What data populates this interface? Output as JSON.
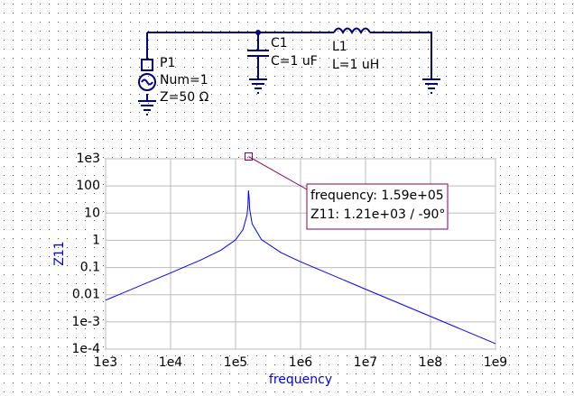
{
  "schematic": {
    "components": [
      {
        "name": "P1",
        "params": [
          "Num=1",
          "Z=50 Ω"
        ]
      },
      {
        "name": "C1",
        "params": [
          "C=1 uF"
        ]
      },
      {
        "name": "L1",
        "params": [
          "L=1 uH"
        ]
      }
    ]
  },
  "chart_data": {
    "type": "line",
    "xlabel": "frequency",
    "ylabel": "Z11",
    "color": "#0000ff",
    "log_x": true,
    "log_y": true,
    "grid": true,
    "x": [
      1000,
      10000,
      30000,
      60000,
      100000,
      130000,
      150000,
      155000,
      158000,
      161000,
      165000,
      180000,
      250000,
      500000,
      1000000,
      10000000,
      100000000,
      1000000000
    ],
    "values": [
      0.006283,
      0.06308,
      0.1954,
      0.4394,
      1.038,
      2.454,
      8.44,
      18.9,
      68.6,
      43.4,
      13.86,
      4.05,
      1.07,
      0.3542,
      0.1633,
      0.015919,
      0.0015915,
      0.00015915
    ],
    "xlim": [
      1000,
      1000000000
    ],
    "ylim": [
      0.0001,
      1000
    ],
    "xticks": [
      {
        "value": 1000,
        "label": "1e3"
      },
      {
        "value": 10000,
        "label": "1e4"
      },
      {
        "value": 100000,
        "label": "1e5"
      },
      {
        "value": 1000000,
        "label": "1e6"
      },
      {
        "value": 10000000,
        "label": "1e7"
      },
      {
        "value": 100000000,
        "label": "1e8"
      },
      {
        "value": 1000000000,
        "label": "1e9"
      }
    ],
    "yticks": [
      {
        "value": 0.0001,
        "label": "1e-4"
      },
      {
        "value": 0.001,
        "label": "1e-3"
      },
      0.01,
      0.1,
      1,
      10,
      100,
      {
        "value": 1000,
        "label": "1e3"
      }
    ],
    "marker": {
      "x": 159000,
      "y": 1210,
      "lines": [
        "frequency: 1.59e+05",
        "Z11: 1.21e+03 / -90°"
      ]
    }
  }
}
